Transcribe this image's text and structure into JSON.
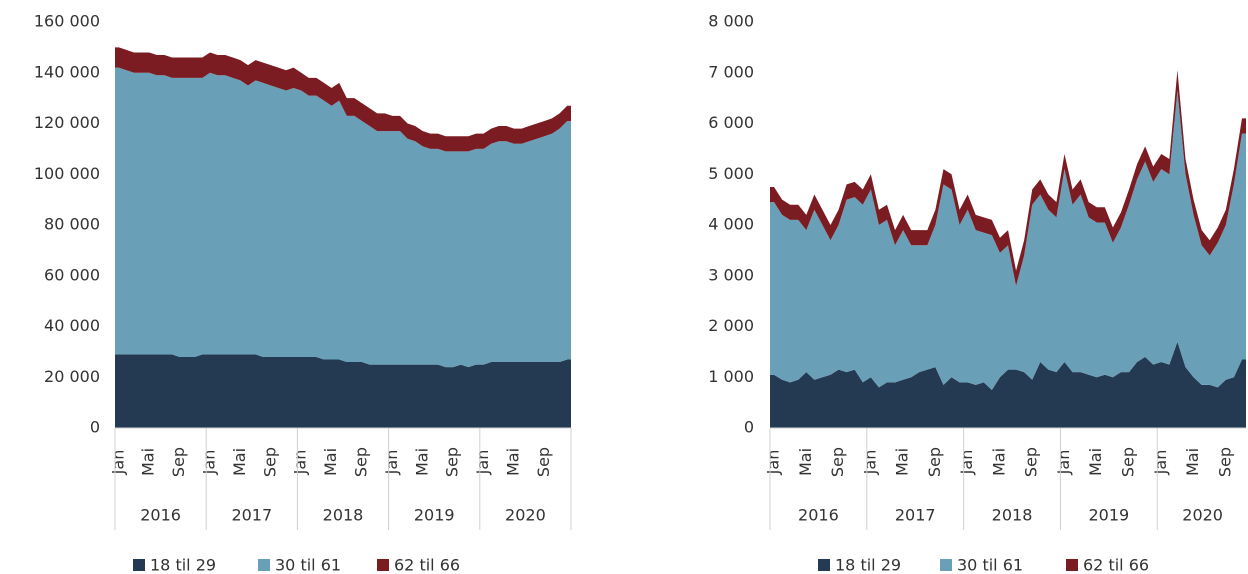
{
  "chart_data": [
    {
      "type": "area",
      "categories": [
        "Jan",
        null,
        null,
        null,
        "Mai",
        null,
        null,
        null,
        "Sep",
        null,
        null,
        null,
        "Jan",
        null,
        null,
        null,
        "Mai",
        null,
        null,
        null,
        "Sep",
        null,
        null,
        null,
        "Jan",
        null,
        null,
        null,
        "Mai",
        null,
        null,
        null,
        "Sep",
        null,
        null,
        null,
        "Jan",
        null,
        null,
        null,
        "Mai",
        null,
        null,
        null,
        "Sep",
        null,
        null,
        null,
        "Jan",
        null,
        null,
        null,
        "Mai",
        null,
        null,
        null,
        "Sep",
        null,
        null,
        null
      ],
      "groups": [
        "2016",
        "2017",
        "2018",
        "2019",
        "2020"
      ],
      "series": [
        {
          "name": "18 til 29",
          "color": "#243a53",
          "values": [
            29000,
            29000,
            29000,
            29000,
            29000,
            29000,
            29000,
            29000,
            28000,
            28000,
            28000,
            29000,
            29000,
            29000,
            29000,
            29000,
            29000,
            29000,
            29000,
            28000,
            28000,
            28000,
            28000,
            28000,
            28000,
            28000,
            28000,
            27000,
            27000,
            27000,
            26000,
            26000,
            26000,
            25000,
            25000,
            25000,
            25000,
            25000,
            25000,
            25000,
            25000,
            25000,
            25000,
            24000,
            24000,
            25000,
            24000,
            25000,
            25000,
            26000,
            26000,
            26000,
            26000,
            26000,
            26000,
            26000,
            26000,
            26000,
            26000,
            27000
          ]
        },
        {
          "name": "30 til 61",
          "color": "#6a9fb8",
          "values": [
            113000,
            112000,
            111000,
            111000,
            111000,
            110000,
            110000,
            109000,
            110000,
            110000,
            110000,
            109000,
            111000,
            110000,
            110000,
            109000,
            108000,
            106000,
            108000,
            108000,
            107000,
            106000,
            105000,
            106000,
            105000,
            103000,
            103000,
            102000,
            100000,
            102000,
            97000,
            97000,
            95000,
            94000,
            92000,
            92000,
            92000,
            92000,
            89000,
            88000,
            86000,
            85000,
            85000,
            85000,
            85000,
            84000,
            85000,
            85000,
            85000,
            86000,
            87000,
            87000,
            86000,
            86000,
            87000,
            88000,
            89000,
            90000,
            92000,
            94000
          ]
        },
        {
          "name": "62 til 66",
          "color": "#7b1c22",
          "values": [
            8000,
            8000,
            8000,
            8000,
            8000,
            8000,
            8000,
            8000,
            8000,
            8000,
            8000,
            8000,
            8000,
            8000,
            8000,
            8000,
            8000,
            8000,
            8000,
            8000,
            8000,
            8000,
            8000,
            8000,
            7000,
            7000,
            7000,
            7000,
            7000,
            7000,
            7000,
            7000,
            7000,
            7000,
            7000,
            7000,
            6000,
            6000,
            6000,
            6000,
            6000,
            6000,
            6000,
            6000,
            6000,
            6000,
            6000,
            6000,
            6000,
            6000,
            6000,
            6000,
            6000,
            6000,
            6000,
            6000,
            6000,
            6000,
            6000,
            6000
          ]
        }
      ],
      "ylim": [
        0,
        160000
      ],
      "yticks": [
        0,
        {
          "value": 20000,
          "label": "20 000"
        },
        {
          "value": 40000,
          "label": "40 000"
        },
        {
          "value": 60000,
          "label": "60 000"
        },
        {
          "value": 80000,
          "label": "80 000"
        },
        {
          "value": 100000,
          "label": "100 000"
        },
        {
          "value": 120000,
          "label": "120 000"
        },
        {
          "value": 140000,
          "label": "140 000"
        },
        {
          "value": 160000,
          "label": "160 000"
        }
      ]
    },
    {
      "type": "area",
      "categories": [
        "Jan",
        null,
        null,
        null,
        "Mai",
        null,
        null,
        null,
        "Sep",
        null,
        null,
        null,
        "Jan",
        null,
        null,
        null,
        "Mai",
        null,
        null,
        null,
        "Sep",
        null,
        null,
        null,
        "Jan",
        null,
        null,
        null,
        "Mai",
        null,
        null,
        null,
        "Sep",
        null,
        null,
        null,
        "Jan",
        null,
        null,
        null,
        "Mai",
        null,
        null,
        null,
        "Sep",
        null,
        null,
        null,
        "Jan",
        null,
        null,
        null,
        "Mai",
        null,
        null,
        null,
        "Sep",
        null,
        null
      ],
      "groups": [
        "2016",
        "2017",
        "2018",
        "2019",
        "2020"
      ],
      "series": [
        {
          "name": "18 til 29",
          "color": "#243a53",
          "values": [
            1050,
            950,
            900,
            950,
            1100,
            950,
            1000,
            1050,
            1150,
            1100,
            1150,
            900,
            1000,
            800,
            900,
            900,
            950,
            1000,
            1100,
            1150,
            1200,
            850,
            1000,
            900,
            900,
            850,
            900,
            750,
            1000,
            1150,
            1150,
            1100,
            950,
            1300,
            1150,
            1100,
            1300,
            1100,
            1100,
            1050,
            1000,
            1050,
            1000,
            1100,
            1100,
            1300,
            1400,
            1250,
            1300,
            1250,
            1700,
            1200,
            1000,
            850,
            850,
            800,
            950,
            1000,
            1350
          ]
        },
        {
          "name": "30 til 61",
          "color": "#6a9fb8",
          "values": [
            3400,
            3250,
            3200,
            3150,
            2800,
            3350,
            3000,
            2650,
            2850,
            3400,
            3400,
            3500,
            3700,
            3200,
            3200,
            2700,
            2950,
            2600,
            2500,
            2450,
            2800,
            3950,
            3700,
            3100,
            3400,
            3050,
            2950,
            3050,
            2450,
            2450,
            1650,
            2300,
            3450,
            3300,
            3150,
            3050,
            3800,
            3300,
            3500,
            3100,
            3050,
            3000,
            2650,
            2850,
            3300,
            3600,
            3850,
            3600,
            3800,
            3750,
            4950,
            3800,
            3200,
            2750,
            2550,
            2850,
            3050,
            3800,
            4450
          ]
        },
        {
          "name": "62 til 66",
          "color": "#7b1c22",
          "values": [
            300,
            300,
            300,
            300,
            300,
            300,
            300,
            300,
            300,
            300,
            300,
            300,
            300,
            300,
            300,
            300,
            300,
            300,
            300,
            300,
            300,
            300,
            300,
            300,
            300,
            300,
            300,
            300,
            300,
            300,
            300,
            300,
            300,
            300,
            300,
            300,
            300,
            300,
            300,
            300,
            300,
            300,
            300,
            300,
            300,
            300,
            300,
            300,
            300,
            300,
            400,
            300,
            300,
            300,
            300,
            300,
            300,
            300,
            300
          ]
        }
      ],
      "ylim": [
        0,
        8000
      ],
      "yticks": [
        0,
        {
          "value": 1000,
          "label": "1 000"
        },
        {
          "value": 2000,
          "label": "2 000"
        },
        {
          "value": 3000,
          "label": "3 000"
        },
        {
          "value": 4000,
          "label": "4 000"
        },
        {
          "value": 5000,
          "label": "5 000"
        },
        {
          "value": 6000,
          "label": "6 000"
        },
        {
          "value": 7000,
          "label": "7 000"
        },
        {
          "value": 8000,
          "label": "8 000"
        }
      ]
    }
  ]
}
